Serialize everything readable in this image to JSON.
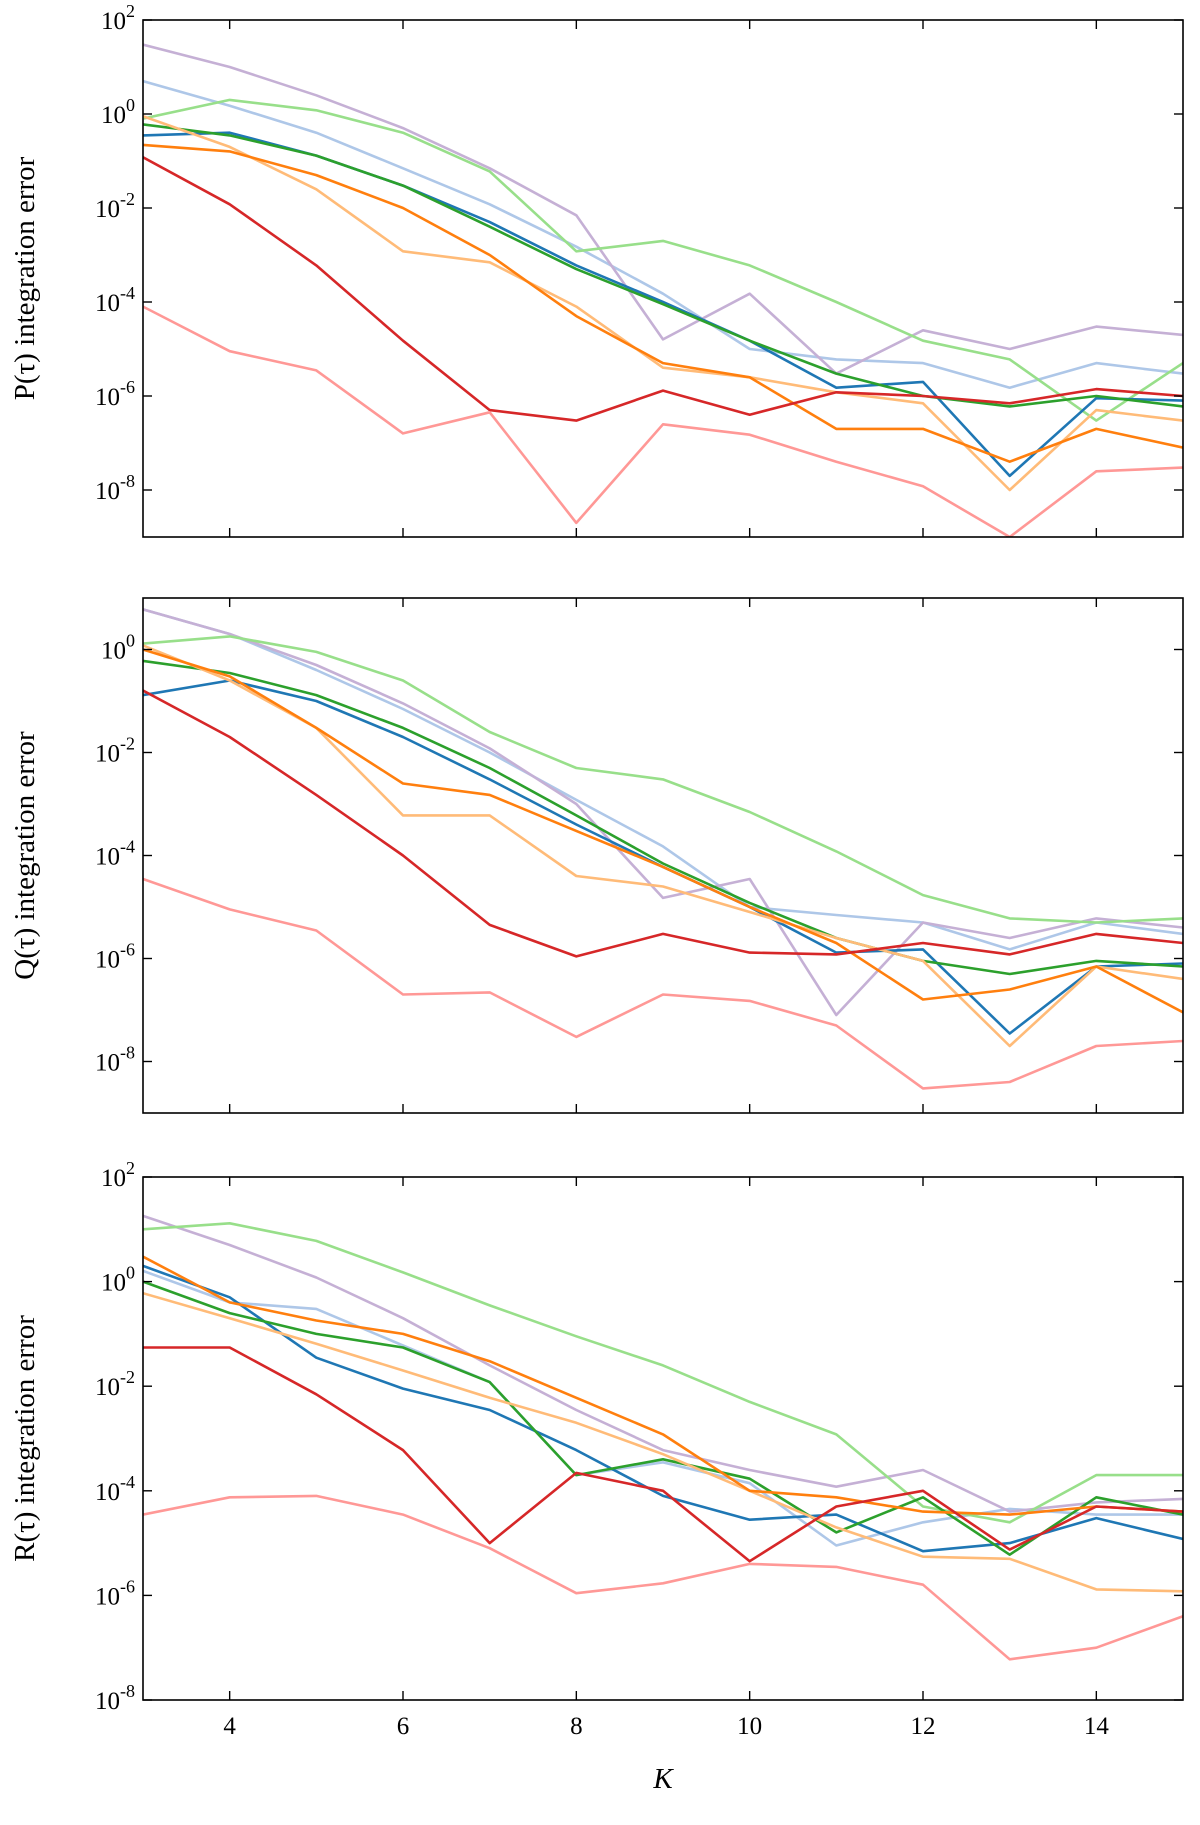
{
  "chart_data": [
    {
      "type": "line",
      "ylabel": "P(τ) integration error",
      "xlabel": "",
      "yscale": "log",
      "xlim": [
        3,
        15
      ],
      "ylim_exp": [
        -9,
        2
      ],
      "ytick_exponents": [
        -8,
        -6,
        -4,
        -2,
        0,
        2
      ],
      "xticks": [
        4,
        6,
        8,
        10,
        12,
        14
      ],
      "x": [
        3,
        4,
        5,
        6,
        7,
        8,
        9,
        10,
        11,
        12,
        13,
        14,
        15
      ],
      "series": [
        {
          "color": "#aec7e8",
          "values": [
            5.0,
            1.5,
            0.4,
            0.07,
            0.012,
            0.0015,
            0.00015,
            1e-05,
            6e-06,
            5e-06,
            1.5e-06,
            5e-06,
            3e-06
          ]
        },
        {
          "color": "#c5b0d5",
          "values": [
            30.0,
            10.0,
            2.5,
            0.5,
            0.07,
            0.007,
            1.6e-05,
            0.00015,
            3e-06,
            2.5e-05,
            1e-05,
            3e-05,
            2e-05
          ]
        },
        {
          "color": "#98df8a",
          "values": [
            0.8,
            2.0,
            1.2,
            0.4,
            0.06,
            0.0012,
            0.002,
            0.0006,
            0.0001,
            1.5e-05,
            6e-06,
            3e-07,
            5e-06
          ]
        },
        {
          "color": "#1f77b4",
          "values": [
            0.35,
            0.4,
            0.13,
            0.03,
            0.005,
            0.0006,
            0.0001,
            1.5e-05,
            1.5e-06,
            2e-06,
            2e-08,
            9e-07,
            8e-07
          ]
        },
        {
          "color": "#2ca02c",
          "values": [
            0.6,
            0.35,
            0.13,
            0.03,
            0.004,
            0.0005,
            9e-05,
            1.5e-05,
            3e-06,
            1e-06,
            6e-07,
            1e-06,
            6e-07
          ]
        },
        {
          "color": "#ffbb78",
          "values": [
            0.9,
            0.2,
            0.025,
            0.0012,
            0.0007,
            8e-05,
            4e-06,
            2.5e-06,
            1.2e-06,
            7e-07,
            1e-08,
            5e-07,
            3e-07
          ]
        },
        {
          "color": "#ff7f0e",
          "values": [
            0.22,
            0.16,
            0.05,
            0.01,
            0.001,
            5e-05,
            5e-06,
            2.5e-06,
            2e-07,
            2e-07,
            4e-08,
            2e-07,
            8e-08
          ]
        },
        {
          "color": "#d62728",
          "values": [
            0.12,
            0.012,
            0.0006,
            1.5e-05,
            5e-07,
            3e-07,
            1.3e-06,
            4e-07,
            1.2e-06,
            1e-06,
            7e-07,
            1.4e-06,
            1e-06
          ]
        },
        {
          "color": "#ff9896",
          "values": [
            8e-05,
            9e-06,
            3.5e-06,
            1.6e-07,
            4.5e-07,
            2e-09,
            2.5e-07,
            1.5e-07,
            4e-08,
            1.2e-08,
            1e-09,
            2.5e-08,
            3e-08
          ]
        }
      ]
    },
    {
      "type": "line",
      "ylabel": "Q(τ) integration error",
      "xlabel": "",
      "yscale": "log",
      "xlim": [
        3,
        15
      ],
      "ylim_exp": [
        -9,
        1
      ],
      "ytick_exponents": [
        -8,
        -6,
        -4,
        -2,
        0
      ],
      "xticks": [
        4,
        6,
        8,
        10,
        12,
        14
      ],
      "x": [
        3,
        4,
        5,
        6,
        7,
        8,
        9,
        10,
        11,
        12,
        13,
        14,
        15
      ],
      "series": [
        {
          "color": "#aec7e8",
          "values": [
            6.0,
            2.0,
            0.4,
            0.07,
            0.01,
            0.0012,
            0.00015,
            1e-05,
            7e-06,
            5e-06,
            1.5e-06,
            5e-06,
            3e-06
          ]
        },
        {
          "color": "#c5b0d5",
          "values": [
            6.0,
            2.0,
            0.5,
            0.09,
            0.012,
            0.001,
            1.5e-05,
            3.5e-05,
            8e-08,
            5e-06,
            2.5e-06,
            6e-06,
            4e-06
          ]
        },
        {
          "color": "#98df8a",
          "values": [
            1.3,
            1.8,
            0.9,
            0.25,
            0.025,
            0.005,
            0.003,
            0.0007,
            0.00012,
            1.7e-05,
            6e-06,
            5e-06,
            6e-06
          ]
        },
        {
          "color": "#1f77b4",
          "values": [
            0.13,
            0.25,
            0.1,
            0.02,
            0.003,
            0.0004,
            6e-05,
            1e-05,
            1.3e-06,
            1.5e-06,
            3.5e-08,
            7e-07,
            8e-07
          ]
        },
        {
          "color": "#2ca02c",
          "values": [
            0.6,
            0.35,
            0.13,
            0.03,
            0.005,
            0.0006,
            7e-05,
            1.2e-05,
            2.5e-06,
            9e-07,
            5e-07,
            9e-07,
            7e-07
          ]
        },
        {
          "color": "#ffbb78",
          "values": [
            1.2,
            0.25,
            0.03,
            0.0006,
            0.0006,
            4e-05,
            2.5e-05,
            8e-06,
            2.5e-06,
            9e-07,
            2e-08,
            7e-07,
            4e-07
          ]
        },
        {
          "color": "#ff7f0e",
          "values": [
            1.0,
            0.3,
            0.03,
            0.0025,
            0.0015,
            0.0003,
            6e-05,
            1e-05,
            2e-06,
            1.6e-07,
            2.5e-07,
            7e-07,
            9e-08
          ]
        },
        {
          "color": "#d62728",
          "values": [
            0.16,
            0.02,
            0.0015,
            0.0001,
            4.5e-06,
            1.1e-06,
            3e-06,
            1.3e-06,
            1.2e-06,
            2e-06,
            1.2e-06,
            3e-06,
            2e-06
          ]
        },
        {
          "color": "#ff9896",
          "values": [
            3.5e-05,
            9e-06,
            3.5e-06,
            2e-07,
            2.2e-07,
            3e-08,
            2e-07,
            1.5e-07,
            5e-08,
            3e-09,
            4e-09,
            2e-08,
            2.5e-08
          ]
        }
      ]
    },
    {
      "type": "line",
      "ylabel": "R(τ) integration error",
      "xlabel": "K",
      "yscale": "log",
      "xlim": [
        3,
        15
      ],
      "ylim_exp": [
        -8,
        2
      ],
      "ytick_exponents": [
        -8,
        -6,
        -4,
        -2,
        0,
        2
      ],
      "xticks": [
        4,
        6,
        8,
        10,
        12,
        14
      ],
      "x": [
        3,
        4,
        5,
        6,
        7,
        8,
        9,
        10,
        11,
        12,
        13,
        14,
        15
      ],
      "series": [
        {
          "color": "#aec7e8",
          "values": [
            1.6,
            0.4,
            0.3,
            0.06,
            0.012,
            0.0002,
            0.00035,
            0.00014,
            9e-06,
            2.5e-05,
            4.5e-05,
            3.5e-05,
            3.5e-05
          ]
        },
        {
          "color": "#c5b0d5",
          "values": [
            18.0,
            5.0,
            1.2,
            0.2,
            0.025,
            0.0035,
            0.0006,
            0.00025,
            0.00012,
            0.00025,
            4e-05,
            6e-05,
            7e-05
          ]
        },
        {
          "color": "#98df8a",
          "values": [
            10.0,
            13.0,
            6.0,
            1.5,
            0.35,
            0.09,
            0.025,
            0.005,
            0.0012,
            5e-05,
            2.5e-05,
            0.0002,
            0.0002
          ]
        },
        {
          "color": "#1f77b4",
          "values": [
            2.0,
            0.5,
            0.035,
            0.009,
            0.0035,
            0.0006,
            8e-05,
            2.8e-05,
            3.5e-05,
            7e-06,
            1e-05,
            3e-05,
            1.2e-05
          ]
        },
        {
          "color": "#2ca02c",
          "values": [
            1.0,
            0.25,
            0.1,
            0.055,
            0.012,
            0.0002,
            0.0004,
            0.00017,
            1.6e-05,
            7.5e-05,
            6e-06,
            7.5e-05,
            3.5e-05
          ]
        },
        {
          "color": "#ffbb78",
          "values": [
            0.6,
            0.2,
            0.065,
            0.02,
            0.006,
            0.002,
            0.0005,
            0.0001,
            2e-05,
            5.5e-06,
            5e-06,
            1.3e-06,
            1.2e-06
          ]
        },
        {
          "color": "#ff7f0e",
          "values": [
            3.0,
            0.4,
            0.18,
            0.1,
            0.03,
            0.006,
            0.0012,
            0.0001,
            7.5e-05,
            4e-05,
            3.5e-05,
            5e-05,
            4e-05
          ]
        },
        {
          "color": "#d62728",
          "values": [
            0.055,
            0.055,
            0.007,
            0.0006,
            1e-05,
            0.00022,
            0.0001,
            4.5e-06,
            5e-05,
            0.0001,
            7.5e-06,
            5e-05,
            4e-05
          ]
        },
        {
          "color": "#ff9896",
          "values": [
            3.5e-05,
            7.5e-05,
            8e-05,
            3.5e-05,
            8e-06,
            1.1e-06,
            1.7e-06,
            4e-06,
            3.5e-06,
            1.6e-06,
            6e-08,
            1e-07,
            4e-07
          ]
        }
      ]
    }
  ]
}
